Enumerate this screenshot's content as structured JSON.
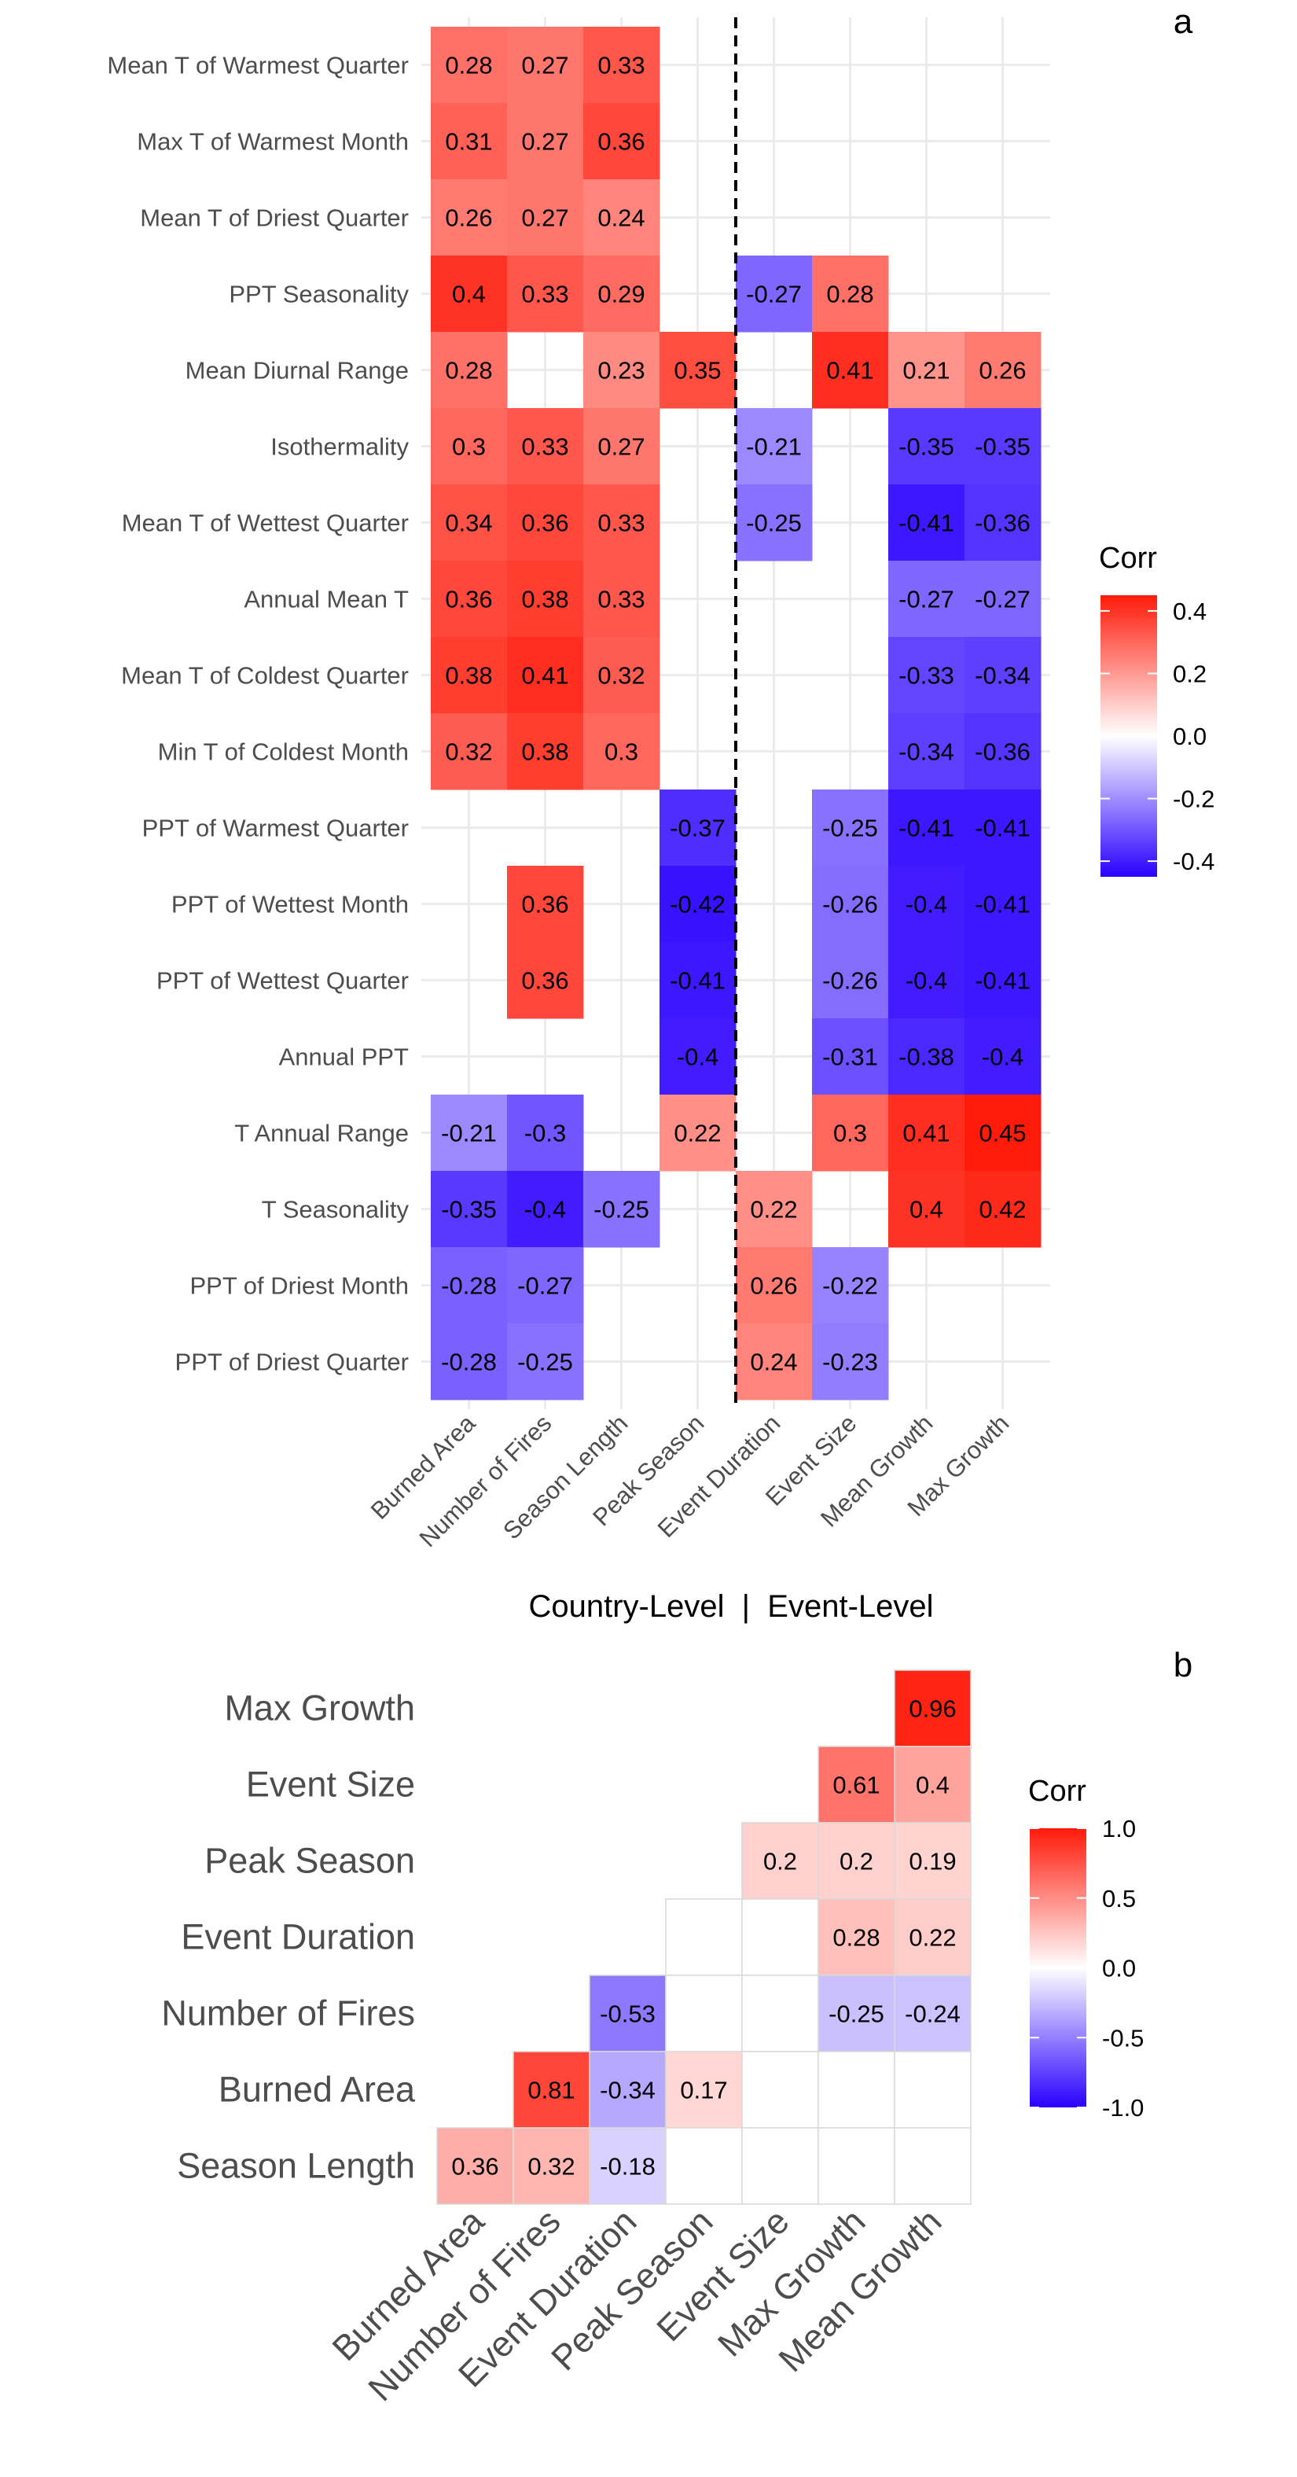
{
  "chart_data": [
    {
      "type": "heatmap",
      "panel": "a",
      "rows": [
        "Mean T of Warmest Quarter",
        "Max T of Warmest Month",
        "Mean T of Driest Quarter",
        "PPT Seasonality",
        "Mean Diurnal Range",
        "Isothermality",
        "Mean T of Wettest Quarter",
        "Annual Mean T",
        "Mean T of Coldest Quarter",
        "Min T of Coldest Month",
        "PPT of Warmest Quarter",
        "PPT of Wettest Month",
        "PPT of Wettest Quarter",
        "Annual PPT",
        "T Annual Range",
        "T Seasonality",
        "PPT of Driest Month",
        "PPT of Driest Quarter"
      ],
      "columns": [
        "Burned Area",
        "Number of Fires",
        "Season Length",
        "Peak Season",
        "Event Duration",
        "Event Size",
        "Mean Growth",
        "Max Growth"
      ],
      "values": [
        [
          0.28,
          0.27,
          0.33,
          null,
          null,
          null,
          null,
          null
        ],
        [
          0.31,
          0.27,
          0.36,
          null,
          null,
          null,
          null,
          null
        ],
        [
          0.26,
          0.27,
          0.24,
          null,
          null,
          null,
          null,
          null
        ],
        [
          0.4,
          0.33,
          0.29,
          null,
          -0.27,
          0.28,
          null,
          null
        ],
        [
          0.28,
          null,
          0.23,
          0.35,
          null,
          0.41,
          0.21,
          0.26
        ],
        [
          0.3,
          0.33,
          0.27,
          null,
          -0.21,
          null,
          -0.35,
          -0.35
        ],
        [
          0.34,
          0.36,
          0.33,
          null,
          -0.25,
          null,
          -0.41,
          -0.36
        ],
        [
          0.36,
          0.38,
          0.33,
          null,
          null,
          null,
          -0.27,
          -0.27
        ],
        [
          0.38,
          0.41,
          0.32,
          null,
          null,
          null,
          -0.33,
          -0.34
        ],
        [
          0.32,
          0.38,
          0.3,
          null,
          null,
          null,
          -0.34,
          -0.36
        ],
        [
          null,
          null,
          null,
          -0.37,
          null,
          -0.25,
          -0.41,
          -0.41
        ],
        [
          null,
          0.36,
          null,
          -0.42,
          null,
          -0.26,
          -0.4,
          -0.41
        ],
        [
          null,
          0.36,
          null,
          -0.41,
          null,
          -0.26,
          -0.4,
          -0.41
        ],
        [
          null,
          null,
          null,
          -0.4,
          null,
          -0.31,
          -0.38,
          -0.4
        ],
        [
          -0.21,
          -0.3,
          null,
          0.22,
          null,
          0.3,
          0.41,
          0.45
        ],
        [
          -0.35,
          -0.4,
          -0.25,
          null,
          0.22,
          null,
          0.4,
          0.42
        ],
        [
          -0.28,
          -0.27,
          null,
          null,
          0.26,
          -0.22,
          null,
          null
        ],
        [
          -0.28,
          -0.25,
          null,
          null,
          0.24,
          -0.23,
          null,
          null
        ]
      ],
      "divider_after_column": "Peak Season",
      "caption": "Country-Level  |  Event-Level",
      "legend": {
        "title": "Corr",
        "limits": [
          -0.45,
          0.45
        ],
        "ticks": [
          0.4,
          0.2,
          0.0,
          -0.2,
          -0.4
        ],
        "tick_labels": [
          "0.4",
          "0.2",
          "0.0",
          "-0.2",
          "-0.4"
        ]
      },
      "colors": {
        "low": "#2a00ff",
        "mid": "#ffffff",
        "high": "#ff1a0a"
      }
    },
    {
      "type": "heatmap",
      "panel": "b",
      "rows": [
        "Max Growth",
        "Event Size",
        "Peak Season",
        "Event Duration",
        "Number of Fires",
        "Burned Area",
        "Season Length"
      ],
      "columns": [
        "Burned Area",
        "Number of Fires",
        "Event Duration",
        "Peak Season",
        "Event Size",
        "Max Growth",
        "Mean Growth"
      ],
      "values": [
        [
          null,
          null,
          null,
          null,
          null,
          null,
          0.96
        ],
        [
          null,
          null,
          null,
          null,
          null,
          0.61,
          0.4
        ],
        [
          null,
          null,
          null,
          null,
          0.2,
          0.2,
          0.19
        ],
        [
          null,
          null,
          null,
          "blank",
          "blank",
          0.28,
          0.22
        ],
        [
          null,
          null,
          -0.53,
          "blank",
          "blank",
          -0.25,
          -0.24
        ],
        [
          null,
          0.81,
          -0.34,
          0.17,
          "blank",
          "blank",
          "blank"
        ],
        [
          0.36,
          0.32,
          -0.18,
          "blank",
          "blank",
          "blank",
          "blank"
        ]
      ],
      "legend": {
        "title": "Corr",
        "limits": [
          -1.0,
          1.0
        ],
        "ticks": [
          1.0,
          0.5,
          0.0,
          -0.5,
          -1.0
        ],
        "tick_labels": [
          "1.0",
          "0.5",
          "0.0",
          "-0.5",
          "-1.0"
        ]
      },
      "colors": {
        "low": "#2a00ff",
        "mid": "#ffffff",
        "high": "#ff1a0a"
      }
    }
  ]
}
